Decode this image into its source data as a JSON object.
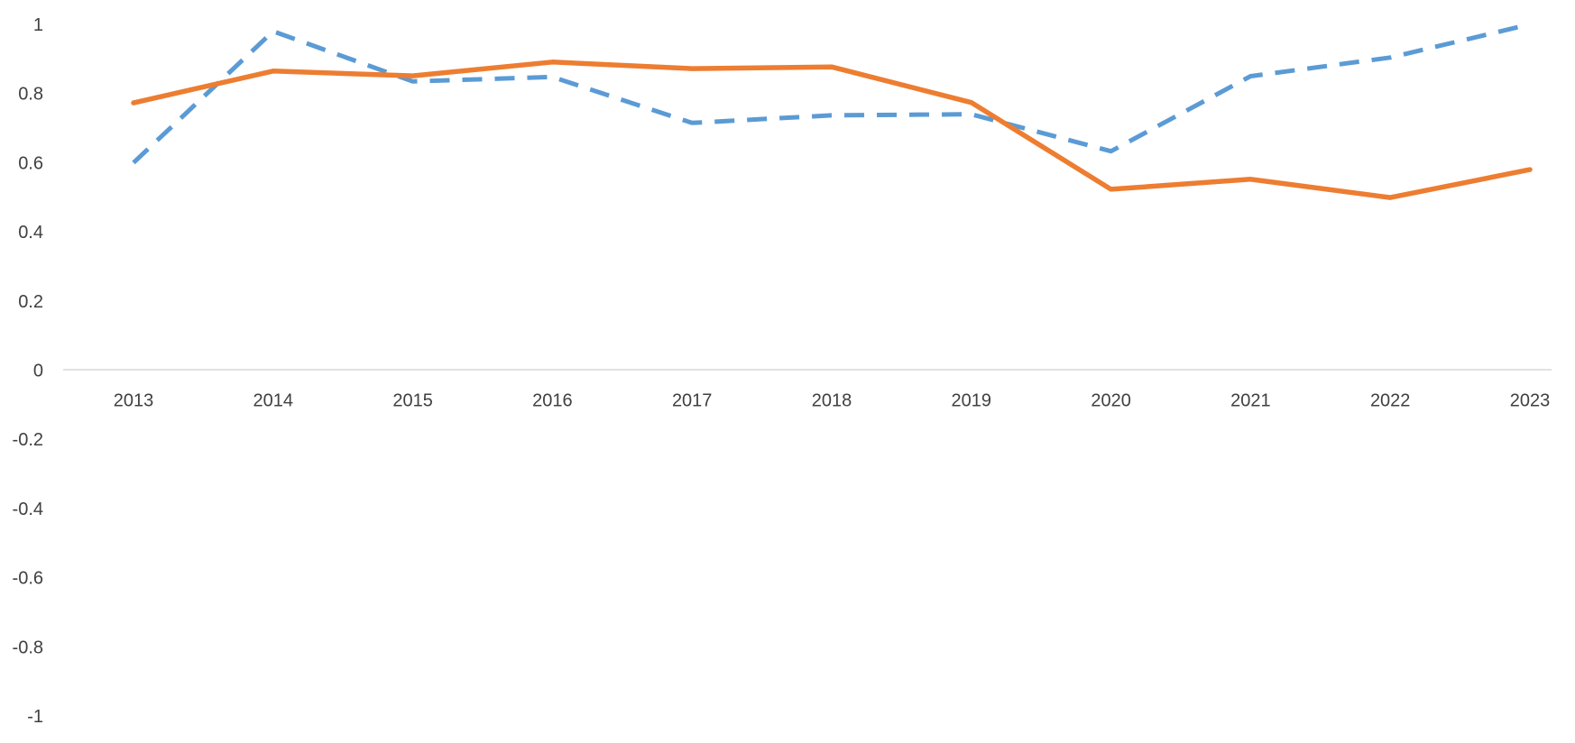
{
  "chart_data": {
    "type": "line",
    "title": "",
    "xlabel": "",
    "ylabel": "",
    "categories": [
      "2013",
      "2014",
      "2015",
      "2016",
      "2017",
      "2018",
      "2019",
      "2020",
      "2021",
      "2022",
      "2023"
    ],
    "ylim": [
      -1,
      1
    ],
    "yticks": [
      1,
      0.8,
      0.6,
      0.4,
      0.2,
      0,
      -0.2,
      -0.4,
      -0.6,
      -0.8,
      -1
    ],
    "ytick_labels": [
      "1",
      "0.8",
      "0.6",
      "0.4",
      "0.2",
      "0",
      "-0.2",
      "-0.4",
      "-0.6",
      "-0.8",
      "-1"
    ],
    "grid": false,
    "legend": "none visible",
    "series": [
      {
        "color": "#5B9BD5",
        "style": "dashed",
        "values": [
          0.6,
          0.98,
          0.835,
          0.848,
          0.715,
          0.737,
          0.74,
          0.633,
          0.85,
          0.904,
          1.0
        ]
      },
      {
        "color": "#ED7D31",
        "style": "solid",
        "values": [
          0.773,
          0.865,
          0.851,
          0.891,
          0.872,
          0.877,
          0.774,
          0.523,
          0.552,
          0.499,
          0.58
        ]
      }
    ]
  }
}
